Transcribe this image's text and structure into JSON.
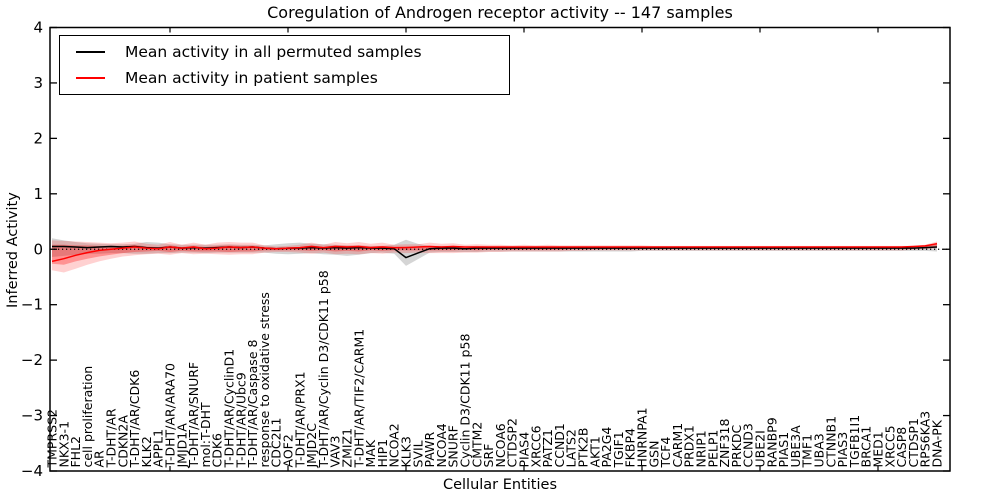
{
  "chart_data": {
    "type": "line",
    "title": "Coregulation of Androgen receptor activity -- 147 samples",
    "xlabel": "Cellular Entities",
    "ylabel": "Inferred Activity",
    "ylim": [
      -4,
      4
    ],
    "yticks": [
      4,
      3,
      2,
      1,
      0,
      -1,
      -2,
      -3,
      -4
    ],
    "x_tick_interval": 10,
    "grid": false,
    "legend_position": "upper left",
    "categories": [
      "TMPRSS2",
      "NKX3-1",
      "FHL2",
      "cell proliferation",
      "AR",
      "T-DHT/AR",
      "CDKN2A",
      "T-DHT/AR/CDK6",
      "KLK2",
      "APPL1",
      "T-DHT/AR/ARA70",
      "JMJD1A",
      "T-DHT/AR/SNURF",
      "mol:T-DHT",
      "CDK6",
      "T-DHT/AR/CyclinD1",
      "T-DHT/AR/Ubc9",
      "T-DHT/AR/Caspase 8",
      "response to oxidative stress",
      "CDC2L1",
      "AOF2",
      "T-DHT/AR/PRX1",
      "JMJD2C",
      "T-DHT/AR/Cyclin D3/CDK11 p58",
      "VAV3",
      "ZMIZ1",
      "T-DHT/AR/TIF2/CARM1",
      "MAK",
      "HIP1",
      "NCOA2",
      "KLK3",
      "SVIL",
      "PAWR",
      "NCOA4",
      "SNURF",
      "Cyclin D3/CDK11 p58",
      "CMTM2",
      "SRF",
      "NCOA6",
      "CTDSP2",
      "PIAS4",
      "XRCC6",
      "PATZ1",
      "CCND1",
      "LATS2",
      "PTK2B",
      "AKT1",
      "PA2G4",
      "TGIF1",
      "FKBP4",
      "HNRNPA1",
      "GSN",
      "TCF4",
      "CARM1",
      "PRDX1",
      "NRIP1",
      "PELP1",
      "ZNF318",
      "PRKDC",
      "CCND3",
      "UBE2I",
      "RANBP9",
      "PIAS1",
      "UBE3A",
      "TMF1",
      "UBA3",
      "CTNNB1",
      "PIAS3",
      "TGFB1I1",
      "BRCA1",
      "MED1",
      "XRCC5",
      "CASP8",
      "CTDSP1",
      "RPS6KA3",
      "DNA-PK"
    ],
    "series": [
      {
        "name": "Mean activity in all permuted samples",
        "color": "#000000",
        "style": "solid",
        "values": [
          0.05,
          0.05,
          0.04,
          0.03,
          0.04,
          0.05,
          0.04,
          0.05,
          0.03,
          0.02,
          0.04,
          0.02,
          0.03,
          0.02,
          0.03,
          0.04,
          0.03,
          0.04,
          0.02,
          0.01,
          0.02,
          0.02,
          0.03,
          0.02,
          0.03,
          0.02,
          0.03,
          0.02,
          0.02,
          0.01,
          -0.15,
          -0.07,
          0.01,
          0.02,
          0.02,
          0.01,
          0.02,
          0.02,
          0.02,
          0.02,
          0.02,
          0.02,
          0.02,
          0.02,
          0.02,
          0.02,
          0.02,
          0.02,
          0.02,
          0.02,
          0.02,
          0.02,
          0.02,
          0.02,
          0.02,
          0.02,
          0.02,
          0.02,
          0.02,
          0.02,
          0.02,
          0.02,
          0.02,
          0.02,
          0.02,
          0.02,
          0.02,
          0.02,
          0.02,
          0.02,
          0.02,
          0.02,
          0.02,
          0.02,
          0.03,
          0.04
        ]
      },
      {
        "name": "Mean activity in patient samples",
        "color": "#ff0000",
        "style": "solid",
        "values": [
          -0.22,
          -0.17,
          -0.11,
          -0.06,
          -0.02,
          0,
          0.02,
          0.04,
          0.02,
          0.01,
          0.04,
          0.02,
          0.04,
          0.01,
          0.02,
          0.04,
          0.03,
          0.04,
          0.02,
          0.01,
          0.02,
          0.03,
          0.05,
          0.03,
          0.05,
          0.04,
          0.05,
          0.03,
          0.04,
          0.03,
          0.03,
          0.04,
          0.05,
          0.04,
          0.05,
          0.04,
          0.04,
          0.04,
          0.04,
          0.04,
          0.04,
          0.04,
          0.04,
          0.04,
          0.04,
          0.04,
          0.04,
          0.04,
          0.04,
          0.04,
          0.04,
          0.04,
          0.04,
          0.04,
          0.04,
          0.04,
          0.04,
          0.04,
          0.04,
          0.04,
          0.04,
          0.04,
          0.04,
          0.04,
          0.04,
          0.04,
          0.04,
          0.04,
          0.04,
          0.04,
          0.04,
          0.04,
          0.04,
          0.05,
          0.06,
          0.1
        ]
      }
    ],
    "bands": [
      {
        "name": "permuted-samples-range",
        "color": "#888888",
        "opacity": 0.35,
        "upper": [
          0.2,
          0.16,
          0.13,
          0.11,
          0.1,
          0.09,
          0.09,
          0.1,
          0.13,
          0.12,
          0.09,
          0.08,
          0.08,
          0.08,
          0.08,
          0.09,
          0.08,
          0.08,
          0.07,
          0.09,
          0.11,
          0.12,
          0.1,
          0.09,
          0.08,
          0.07,
          0.07,
          0.06,
          0.06,
          0.08,
          0.17,
          0.1,
          0.06,
          0.06,
          0.06,
          0.05,
          0.06,
          0.05,
          0.05,
          0.05,
          0.05,
          0.05,
          0.05,
          0.05,
          0.05,
          0.05,
          0.05,
          0.05,
          0.05,
          0.05,
          0.05,
          0.05,
          0.05,
          0.05,
          0.05,
          0.05,
          0.05,
          0.05,
          0.05,
          0.05,
          0.05,
          0.05,
          0.05,
          0.05,
          0.05,
          0.05,
          0.05,
          0.05,
          0.05,
          0.05,
          0.05,
          0.05,
          0.05,
          0.05,
          0.06,
          0.1
        ],
        "lower": [
          -0.14,
          -0.12,
          -0.1,
          -0.08,
          -0.08,
          -0.07,
          -0.07,
          -0.08,
          -0.08,
          -0.07,
          -0.07,
          -0.06,
          -0.06,
          -0.07,
          -0.06,
          -0.06,
          -0.06,
          -0.06,
          -0.06,
          -0.08,
          -0.09,
          -0.08,
          -0.07,
          -0.09,
          -0.1,
          -0.12,
          -0.1,
          -0.07,
          -0.06,
          -0.08,
          -0.3,
          -0.18,
          -0.06,
          -0.05,
          -0.05,
          -0.05,
          -0.05,
          -0.04,
          -0.04,
          -0.04,
          -0.04,
          -0.04,
          -0.04,
          -0.04,
          -0.04,
          -0.04,
          -0.04,
          -0.04,
          -0.04,
          -0.04,
          -0.03,
          -0.03,
          -0.03,
          -0.03,
          -0.03,
          -0.03,
          -0.03,
          -0.03,
          -0.03,
          -0.03,
          -0.03,
          -0.03,
          -0.03,
          -0.03,
          -0.03,
          -0.03,
          -0.03,
          -0.03,
          -0.03,
          -0.03,
          -0.03,
          -0.03,
          -0.03,
          -0.03,
          -0.03,
          -0.04
        ]
      },
      {
        "name": "patient-samples-outer-range",
        "color": "#ff0000",
        "opacity": 0.18,
        "upper": [
          0.16,
          0.15,
          0.14,
          0.13,
          0.12,
          0.11,
          0.12,
          0.14,
          0.1,
          0.08,
          0.13,
          0.08,
          0.12,
          0.08,
          0.12,
          0.13,
          0.12,
          0.12,
          0.07,
          0.05,
          0.06,
          0.08,
          0.12,
          0.08,
          0.13,
          0.11,
          0.13,
          0.1,
          0.12,
          0.08,
          0.09,
          0.09,
          0.12,
          0.1,
          0.11,
          0.08,
          0.09,
          0.08,
          0.08,
          0.07,
          0.08,
          0.07,
          0.08,
          0.07,
          0.07,
          0.07,
          0.07,
          0.07,
          0.07,
          0.07,
          0.07,
          0.06,
          0.06,
          0.06,
          0.06,
          0.06,
          0.06,
          0.06,
          0.06,
          0.06,
          0.06,
          0.06,
          0.06,
          0.06,
          0.06,
          0.06,
          0.06,
          0.06,
          0.06,
          0.06,
          0.06,
          0.06,
          0.06,
          0.06,
          0.08,
          0.14
        ],
        "lower": [
          -0.38,
          -0.42,
          -0.35,
          -0.28,
          -0.22,
          -0.17,
          -0.13,
          -0.11,
          -0.09,
          -0.08,
          -0.1,
          -0.07,
          -0.09,
          -0.08,
          -0.09,
          -0.1,
          -0.09,
          -0.09,
          -0.06,
          -0.05,
          -0.05,
          -0.06,
          -0.08,
          -0.06,
          -0.09,
          -0.08,
          -0.09,
          -0.07,
          -0.08,
          -0.06,
          -0.07,
          -0.06,
          -0.07,
          -0.07,
          -0.07,
          -0.06,
          -0.06,
          -0.05,
          -0.05,
          -0.04,
          -0.04,
          -0.04,
          -0.04,
          -0.04,
          -0.03,
          -0.03,
          -0.02,
          -0.02,
          -0.02,
          -0.02,
          -0.02,
          -0.02,
          -0.02,
          -0.02,
          -0.02,
          -0.02,
          -0.02,
          -0.02,
          -0.02,
          -0.02,
          -0.02,
          -0.02,
          -0.02,
          -0.02,
          -0.02,
          -0.02,
          -0.02,
          -0.02,
          -0.02,
          -0.02,
          -0.02,
          -0.02,
          -0.02,
          -0.01,
          0,
          0.02
        ]
      },
      {
        "name": "patient-samples-inner-range",
        "color": "#ff0000",
        "opacity": 0.3,
        "upper": [
          0.08,
          0.08,
          0.07,
          0.07,
          0.06,
          0.06,
          0.06,
          0.08,
          0.05,
          0.04,
          0.07,
          0.04,
          0.06,
          0.04,
          0.06,
          0.07,
          0.06,
          0.06,
          0.04,
          0.03,
          0.03,
          0.04,
          0.07,
          0.04,
          0.07,
          0.06,
          0.07,
          0.05,
          0.06,
          0.04,
          0.05,
          0.05,
          0.06,
          0.05,
          0.06,
          0.04,
          0.05,
          0.05,
          0.05,
          0.05,
          0.05,
          0.05,
          0.05,
          0.05,
          0.05,
          0.05,
          0.05,
          0.05,
          0.05,
          0.05,
          0.05,
          0.05,
          0.05,
          0.05,
          0.05,
          0.05,
          0.05,
          0.05,
          0.05,
          0.05,
          0.05,
          0.05,
          0.05,
          0.05,
          0.05,
          0.05,
          0.05,
          0.05,
          0.05,
          0.05,
          0.05,
          0.05,
          0.05,
          0.05,
          0.06,
          0.12
        ],
        "lower": [
          -0.26,
          -0.28,
          -0.22,
          -0.17,
          -0.13,
          -0.1,
          -0.07,
          -0.05,
          -0.04,
          -0.03,
          -0.05,
          -0.03,
          -0.04,
          -0.04,
          -0.04,
          -0.05,
          -0.04,
          -0.04,
          -0.02,
          -0.02,
          -0.02,
          -0.02,
          -0.03,
          -0.02,
          -0.04,
          -0.03,
          -0.04,
          -0.02,
          -0.03,
          -0.02,
          -0.02,
          -0.02,
          -0.02,
          -0.02,
          -0.02,
          -0.01,
          -0.02,
          -0.01,
          -0.01,
          -0.01,
          -0.01,
          -0.01,
          -0.01,
          -0.01,
          0,
          0,
          0,
          0,
          0,
          0,
          0.01,
          0.01,
          0.01,
          0.01,
          0.01,
          0.01,
          0.01,
          0.01,
          0.01,
          0.01,
          0.02,
          0.02,
          0.02,
          0.02,
          0.02,
          0.02,
          0.02,
          0.02,
          0.02,
          0.02,
          0.02,
          0.02,
          0.02,
          0.03,
          0.03,
          0.04
        ]
      }
    ],
    "baseline": {
      "value": 0,
      "style": "dotted",
      "color": "#000000"
    }
  }
}
